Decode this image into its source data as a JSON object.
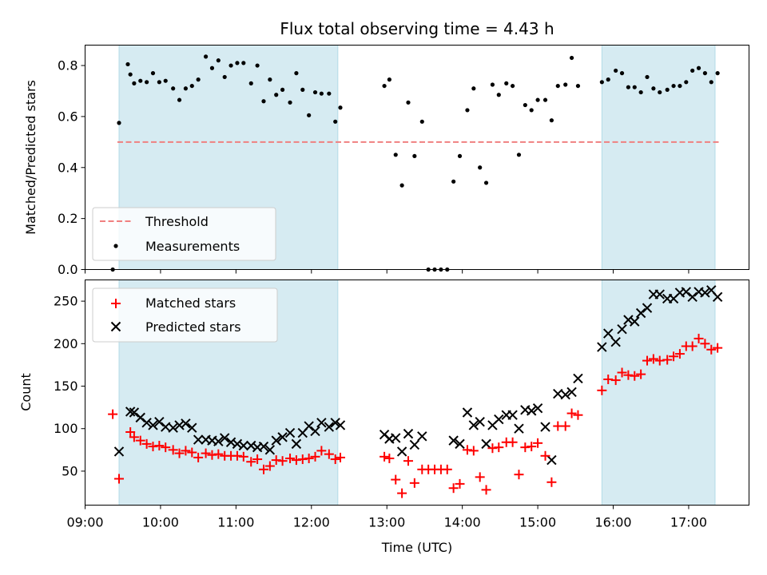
{
  "chart_data": [
    {
      "type": "scatter",
      "title": "Flux total observing time = 4.43 h",
      "xlabel": "",
      "ylabel": "Matched/Predicted stars",
      "xlim": [
        "09:00",
        "17:48"
      ],
      "ylim": [
        0,
        0.88
      ],
      "yticks": [
        "0.0",
        "0.2",
        "0.4",
        "0.6",
        "0.8"
      ],
      "grid": false,
      "legend_position": "lower-left",
      "shaded_intervals": [
        [
          "09:27",
          "12:21"
        ],
        [
          "15:51",
          "17:21"
        ]
      ],
      "threshold": {
        "name": "Threshold",
        "value": 0.5,
        "color": "#f08080",
        "style": "dashed"
      },
      "series": [
        {
          "name": "Measurements",
          "color": "#000000",
          "marker": "dot",
          "points": [
            [
              "09:22",
              0.0
            ],
            [
              "09:27",
              0.575
            ],
            [
              "09:34",
              0.805
            ],
            [
              "09:36",
              0.765
            ],
            [
              "09:39",
              0.73
            ],
            [
              "09:44",
              0.74
            ],
            [
              "09:49",
              0.735
            ],
            [
              "09:54",
              0.77
            ],
            [
              "09:59",
              0.735
            ],
            [
              "10:04",
              0.74
            ],
            [
              "10:10",
              0.71
            ],
            [
              "10:15",
              0.665
            ],
            [
              "10:20",
              0.71
            ],
            [
              "10:25",
              0.72
            ],
            [
              "10:30",
              0.745
            ],
            [
              "10:36",
              0.835
            ],
            [
              "10:41",
              0.79
            ],
            [
              "10:46",
              0.82
            ],
            [
              "10:51",
              0.755
            ],
            [
              "10:56",
              0.8
            ],
            [
              "11:01",
              0.81
            ],
            [
              "11:06",
              0.81
            ],
            [
              "11:12",
              0.73
            ],
            [
              "11:17",
              0.8
            ],
            [
              "11:22",
              0.66
            ],
            [
              "11:27",
              0.745
            ],
            [
              "11:32",
              0.685
            ],
            [
              "11:37",
              0.705
            ],
            [
              "11:43",
              0.655
            ],
            [
              "11:48",
              0.77
            ],
            [
              "11:53",
              0.705
            ],
            [
              "11:58",
              0.605
            ],
            [
              "12:03",
              0.695
            ],
            [
              "12:08",
              0.69
            ],
            [
              "12:14",
              0.69
            ],
            [
              "12:19",
              0.58
            ],
            [
              "12:23",
              0.635
            ],
            [
              "12:58",
              0.72
            ],
            [
              "13:02",
              0.745
            ],
            [
              "13:07",
              0.45
            ],
            [
              "13:12",
              0.33
            ],
            [
              "13:17",
              0.655
            ],
            [
              "13:22",
              0.445
            ],
            [
              "13:28",
              0.58
            ],
            [
              "13:33",
              0.0
            ],
            [
              "13:38",
              0.0
            ],
            [
              "13:43",
              0.0
            ],
            [
              "13:48",
              0.0
            ],
            [
              "13:53",
              0.345
            ],
            [
              "13:58",
              0.445
            ],
            [
              "14:04",
              0.625
            ],
            [
              "14:09",
              0.71
            ],
            [
              "14:14",
              0.4
            ],
            [
              "14:19",
              0.34
            ],
            [
              "14:24",
              0.725
            ],
            [
              "14:29",
              0.685
            ],
            [
              "14:35",
              0.73
            ],
            [
              "14:40",
              0.72
            ],
            [
              "14:45",
              0.45
            ],
            [
              "14:50",
              0.645
            ],
            [
              "14:55",
              0.625
            ],
            [
              "15:00",
              0.665
            ],
            [
              "15:06",
              0.665
            ],
            [
              "15:11",
              0.585
            ],
            [
              "15:16",
              0.72
            ],
            [
              "15:22",
              0.725
            ],
            [
              "15:27",
              0.83
            ],
            [
              "15:32",
              0.72
            ],
            [
              "15:51",
              0.735
            ],
            [
              "15:56",
              0.745
            ],
            [
              "16:02",
              0.78
            ],
            [
              "16:07",
              0.77
            ],
            [
              "16:12",
              0.715
            ],
            [
              "16:17",
              0.715
            ],
            [
              "16:22",
              0.695
            ],
            [
              "16:27",
              0.755
            ],
            [
              "16:32",
              0.71
            ],
            [
              "16:37",
              0.695
            ],
            [
              "16:43",
              0.705
            ],
            [
              "16:48",
              0.72
            ],
            [
              "16:53",
              0.72
            ],
            [
              "16:58",
              0.735
            ],
            [
              "17:03",
              0.78
            ],
            [
              "17:08",
              0.79
            ],
            [
              "17:13",
              0.77
            ],
            [
              "17:18",
              0.735
            ],
            [
              "17:23",
              0.77
            ]
          ]
        }
      ]
    },
    {
      "type": "scatter",
      "title": "",
      "xlabel": "Time (UTC)",
      "ylabel": "Count",
      "xlim": [
        "09:00",
        "17:48"
      ],
      "xticks": [
        "09:00",
        "10:00",
        "11:00",
        "12:00",
        "13:00",
        "14:00",
        "15:00",
        "16:00",
        "17:00"
      ],
      "ylim": [
        10,
        275
      ],
      "yticks": [
        "50",
        "100",
        "150",
        "200",
        "250"
      ],
      "grid": false,
      "legend_position": "upper-left",
      "shaded_intervals": [
        [
          "09:27",
          "12:21"
        ],
        [
          "15:51",
          "17:21"
        ]
      ],
      "series": [
        {
          "name": "Matched stars",
          "color": "#ff0000",
          "marker": "plus",
          "points": [
            [
              "09:22",
              117
            ],
            [
              "09:27",
              41
            ],
            [
              "09:36",
              96
            ],
            [
              "09:39",
              90
            ],
            [
              "09:44",
              86
            ],
            [
              "09:49",
              82
            ],
            [
              "09:54",
              79
            ],
            [
              "09:59",
              80
            ],
            [
              "10:04",
              78
            ],
            [
              "10:10",
              75
            ],
            [
              "10:15",
              71
            ],
            [
              "10:20",
              74
            ],
            [
              "10:25",
              72
            ],
            [
              "10:30",
              66
            ],
            [
              "10:36",
              71
            ],
            [
              "10:41",
              69
            ],
            [
              "10:46",
              70
            ],
            [
              "10:51",
              68
            ],
            [
              "10:56",
              68
            ],
            [
              "11:01",
              68
            ],
            [
              "11:06",
              67
            ],
            [
              "11:12",
              61
            ],
            [
              "11:17",
              64
            ],
            [
              "11:22",
              52
            ],
            [
              "11:27",
              56
            ],
            [
              "11:32",
              63
            ],
            [
              "11:37",
              62
            ],
            [
              "11:43",
              65
            ],
            [
              "11:48",
              63
            ],
            [
              "11:53",
              64
            ],
            [
              "11:58",
              65
            ],
            [
              "12:03",
              67
            ],
            [
              "12:08",
              74
            ],
            [
              "12:14",
              70
            ],
            [
              "12:19",
              64
            ],
            [
              "12:23",
              66
            ],
            [
              "12:58",
              67
            ],
            [
              "13:02",
              65
            ],
            [
              "13:07",
              40
            ],
            [
              "13:12",
              24
            ],
            [
              "13:17",
              62
            ],
            [
              "13:22",
              36
            ],
            [
              "13:28",
              52
            ],
            [
              "13:33",
              52
            ],
            [
              "13:38",
              52
            ],
            [
              "13:43",
              52
            ],
            [
              "13:48",
              52
            ],
            [
              "13:53",
              30
            ],
            [
              "13:58",
              35
            ],
            [
              "14:04",
              75
            ],
            [
              "14:09",
              74
            ],
            [
              "14:14",
              43
            ],
            [
              "14:19",
              28
            ],
            [
              "14:24",
              77
            ],
            [
              "14:29",
              78
            ],
            [
              "14:35",
              84
            ],
            [
              "14:40",
              84
            ],
            [
              "14:45",
              46
            ],
            [
              "14:50",
              78
            ],
            [
              "14:55",
              79
            ],
            [
              "15:00",
              83
            ],
            [
              "15:06",
              68
            ],
            [
              "15:11",
              37
            ],
            [
              "15:16",
              103
            ],
            [
              "15:22",
              103
            ],
            [
              "15:27",
              118
            ],
            [
              "15:32",
              116
            ],
            [
              "15:51",
              145
            ],
            [
              "15:56",
              158
            ],
            [
              "16:02",
              157
            ],
            [
              "16:07",
              166
            ],
            [
              "16:12",
              163
            ],
            [
              "16:17",
              162
            ],
            [
              "16:22",
              164
            ],
            [
              "16:27",
              180
            ],
            [
              "16:32",
              182
            ],
            [
              "16:37",
              180
            ],
            [
              "16:43",
              181
            ],
            [
              "16:48",
              185
            ],
            [
              "16:53",
              188
            ],
            [
              "16:58",
              197
            ],
            [
              "17:03",
              197
            ],
            [
              "17:08",
              206
            ],
            [
              "17:13",
              200
            ],
            [
              "17:18",
              193
            ],
            [
              "17:23",
              195
            ]
          ]
        },
        {
          "name": "Predicted stars",
          "color": "#000000",
          "marker": "cross",
          "points": [
            [
              "09:27",
              73
            ],
            [
              "09:36",
              120
            ],
            [
              "09:39",
              119
            ],
            [
              "09:44",
              113
            ],
            [
              "09:49",
              107
            ],
            [
              "09:54",
              104
            ],
            [
              "09:59",
              108
            ],
            [
              "10:04",
              102
            ],
            [
              "10:10",
              101
            ],
            [
              "10:15",
              104
            ],
            [
              "10:20",
              106
            ],
            [
              "10:25",
              101
            ],
            [
              "10:30",
              87
            ],
            [
              "10:36",
              87
            ],
            [
              "10:41",
              86
            ],
            [
              "10:46",
              85
            ],
            [
              "10:51",
              89
            ],
            [
              "10:56",
              84
            ],
            [
              "11:01",
              82
            ],
            [
              "11:06",
              80
            ],
            [
              "11:12",
              80
            ],
            [
              "11:17",
              78
            ],
            [
              "11:22",
              79
            ],
            [
              "11:27",
              75
            ],
            [
              "11:32",
              86
            ],
            [
              "11:37",
              90
            ],
            [
              "11:43",
              95
            ],
            [
              "11:48",
              82
            ],
            [
              "11:53",
              95
            ],
            [
              "11:58",
              103
            ],
            [
              "12:03",
              97
            ],
            [
              "12:08",
              107
            ],
            [
              "12:14",
              102
            ],
            [
              "12:19",
              107
            ],
            [
              "12:23",
              104
            ],
            [
              "12:58",
              93
            ],
            [
              "13:02",
              88
            ],
            [
              "13:07",
              89
            ],
            [
              "13:12",
              73
            ],
            [
              "13:17",
              94
            ],
            [
              "13:22",
              81
            ],
            [
              "13:28",
              91
            ],
            [
              "13:53",
              86
            ],
            [
              "13:58",
              82
            ],
            [
              "14:04",
              119
            ],
            [
              "14:09",
              104
            ],
            [
              "14:14",
              108
            ],
            [
              "14:19",
              82
            ],
            [
              "14:24",
              104
            ],
            [
              "14:29",
              111
            ],
            [
              "14:35",
              116
            ],
            [
              "14:40",
              116
            ],
            [
              "14:45",
              100
            ],
            [
              "14:50",
              122
            ],
            [
              "14:55",
              121
            ],
            [
              "15:00",
              124
            ],
            [
              "15:06",
              102
            ],
            [
              "15:11",
              63
            ],
            [
              "15:16",
              141
            ],
            [
              "15:22",
              140
            ],
            [
              "15:27",
              143
            ],
            [
              "15:32",
              159
            ],
            [
              "15:51",
              196
            ],
            [
              "15:56",
              212
            ],
            [
              "16:02",
              202
            ],
            [
              "16:07",
              217
            ],
            [
              "16:12",
              228
            ],
            [
              "16:17",
              226
            ],
            [
              "16:22",
              236
            ],
            [
              "16:27",
              242
            ],
            [
              "16:32",
              258
            ],
            [
              "16:37",
              258
            ],
            [
              "16:43",
              253
            ],
            [
              "16:48",
              253
            ],
            [
              "16:53",
              260
            ],
            [
              "16:58",
              261
            ],
            [
              "17:03",
              255
            ],
            [
              "17:08",
              261
            ],
            [
              "17:13",
              260
            ],
            [
              "17:18",
              263
            ],
            [
              "17:23",
              255
            ]
          ]
        }
      ]
    }
  ]
}
